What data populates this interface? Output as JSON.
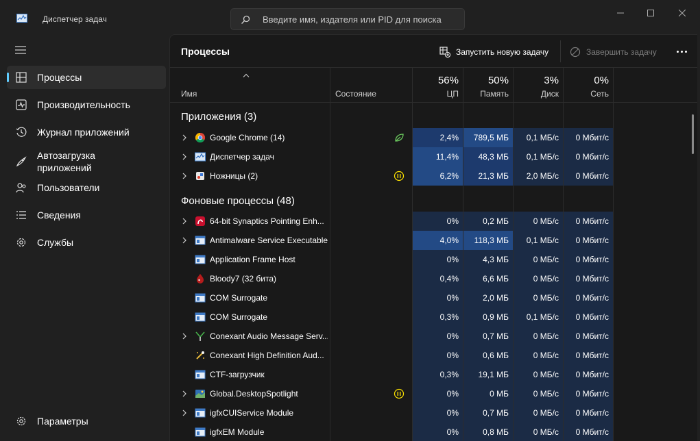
{
  "window": {
    "title": "Диспетчер задач",
    "search_placeholder": "Введите имя, издателя или PID для поиска"
  },
  "sidebar": {
    "items": [
      {
        "label": "Процессы",
        "icon": "processes-icon",
        "active": true
      },
      {
        "label": "Производительность",
        "icon": "performance-icon"
      },
      {
        "label": "Журнал приложений",
        "icon": "app-history-icon"
      },
      {
        "label": "Автозагрузка\nприложений",
        "icon": "startup-apps-icon"
      },
      {
        "label": "Пользователи",
        "icon": "users-icon"
      },
      {
        "label": "Сведения",
        "icon": "details-icon"
      },
      {
        "label": "Службы",
        "icon": "services-icon"
      }
    ],
    "settings_label": "Параметры"
  },
  "toolbar": {
    "title": "Процессы",
    "run_task_label": "Запустить новую задачу",
    "end_task_label": "Завершить задачу"
  },
  "columns": {
    "name": "Имя",
    "status": "Состояние",
    "cpu": {
      "pct": "56%",
      "label": "ЦП"
    },
    "memory": {
      "pct": "50%",
      "label": "Память"
    },
    "disk": {
      "pct": "3%",
      "label": "Диск"
    },
    "network": {
      "pct": "0%",
      "label": "Сеть"
    }
  },
  "groups": {
    "apps": "Приложения (3)",
    "background": "Фоновые процессы (48)"
  },
  "apps": [
    {
      "name": "Google Chrome (14)",
      "icon": "chrome-icon",
      "expandable": true,
      "status": "efficiency-mode-icon",
      "cpu": "2,4%",
      "mem": "789,5 МБ",
      "disk": "0,1 МБ/с",
      "net": "0 Мбит/с"
    },
    {
      "name": "Диспетчер задач",
      "icon": "task-manager-icon",
      "expandable": true,
      "cpu": "11,4%",
      "mem": "48,3 МБ",
      "disk": "0,1 МБ/с",
      "net": "0 Мбит/с"
    },
    {
      "name": "Ножницы (2)",
      "icon": "snipping-tool-icon",
      "expandable": true,
      "status": "suspended-icon",
      "cpu": "6,2%",
      "mem": "21,3 МБ",
      "disk": "2,0 МБ/с",
      "net": "0 Мбит/с"
    }
  ],
  "background": [
    {
      "name": "64-bit Synaptics Pointing Enh...",
      "icon": "synaptics-icon",
      "expandable": true,
      "cpu": "0%",
      "mem": "0,2 МБ",
      "disk": "0 МБ/с",
      "net": "0 Мбит/с"
    },
    {
      "name": "Antimalware Service Executable",
      "icon": "service-window-icon",
      "expandable": true,
      "cpu": "4,0%",
      "mem": "118,3 МБ",
      "disk": "0,1 МБ/с",
      "net": "0 Мбит/с"
    },
    {
      "name": "Application Frame Host",
      "icon": "service-window-icon",
      "expandable": false,
      "cpu": "0%",
      "mem": "4,3 МБ",
      "disk": "0 МБ/с",
      "net": "0 Мбит/с"
    },
    {
      "name": "Bloody7 (32 бита)",
      "icon": "bloody-icon",
      "expandable": false,
      "cpu": "0,4%",
      "mem": "6,6 МБ",
      "disk": "0 МБ/с",
      "net": "0 Мбит/с"
    },
    {
      "name": "COM Surrogate",
      "icon": "service-window-icon",
      "expandable": false,
      "cpu": "0%",
      "mem": "2,0 МБ",
      "disk": "0 МБ/с",
      "net": "0 Мбит/с"
    },
    {
      "name": "COM Surrogate",
      "icon": "service-window-icon",
      "expandable": false,
      "cpu": "0,3%",
      "mem": "0,9 МБ",
      "disk": "0,1 МБ/с",
      "net": "0 Мбит/с"
    },
    {
      "name": "Conexant Audio Message Serv...",
      "icon": "conexant-icon",
      "expandable": true,
      "cpu": "0%",
      "mem": "0,7 МБ",
      "disk": "0 МБ/с",
      "net": "0 Мбит/с"
    },
    {
      "name": "Conexant High Definition Aud...",
      "icon": "conexant-hd-icon",
      "expandable": false,
      "cpu": "0%",
      "mem": "0,6 МБ",
      "disk": "0 МБ/с",
      "net": "0 Мбит/с"
    },
    {
      "name": "CTF-загрузчик",
      "icon": "service-window-icon",
      "expandable": false,
      "cpu": "0,3%",
      "mem": "19,1 МБ",
      "disk": "0 МБ/с",
      "net": "0 Мбит/с"
    },
    {
      "name": "Global.DesktopSpotlight",
      "icon": "spotlight-icon",
      "expandable": true,
      "status": "suspended-icon",
      "cpu": "0%",
      "mem": "0 МБ",
      "disk": "0 МБ/с",
      "net": "0 Мбит/с"
    },
    {
      "name": "igfxCUIService Module",
      "icon": "service-window-icon",
      "expandable": true,
      "cpu": "0%",
      "mem": "0,7 МБ",
      "disk": "0 МБ/с",
      "net": "0 Мбит/с"
    },
    {
      "name": "igfxEM Module",
      "icon": "service-window-icon",
      "expandable": false,
      "cpu": "0%",
      "mem": "0,8 МБ",
      "disk": "0 МБ/с",
      "net": "0 Мбит/с"
    }
  ],
  "colors": {
    "accent": "#60cdff",
    "heat_low": "#1b2b45",
    "heat_mid": "#1d3a6d",
    "heat_high": "#234a85"
  }
}
